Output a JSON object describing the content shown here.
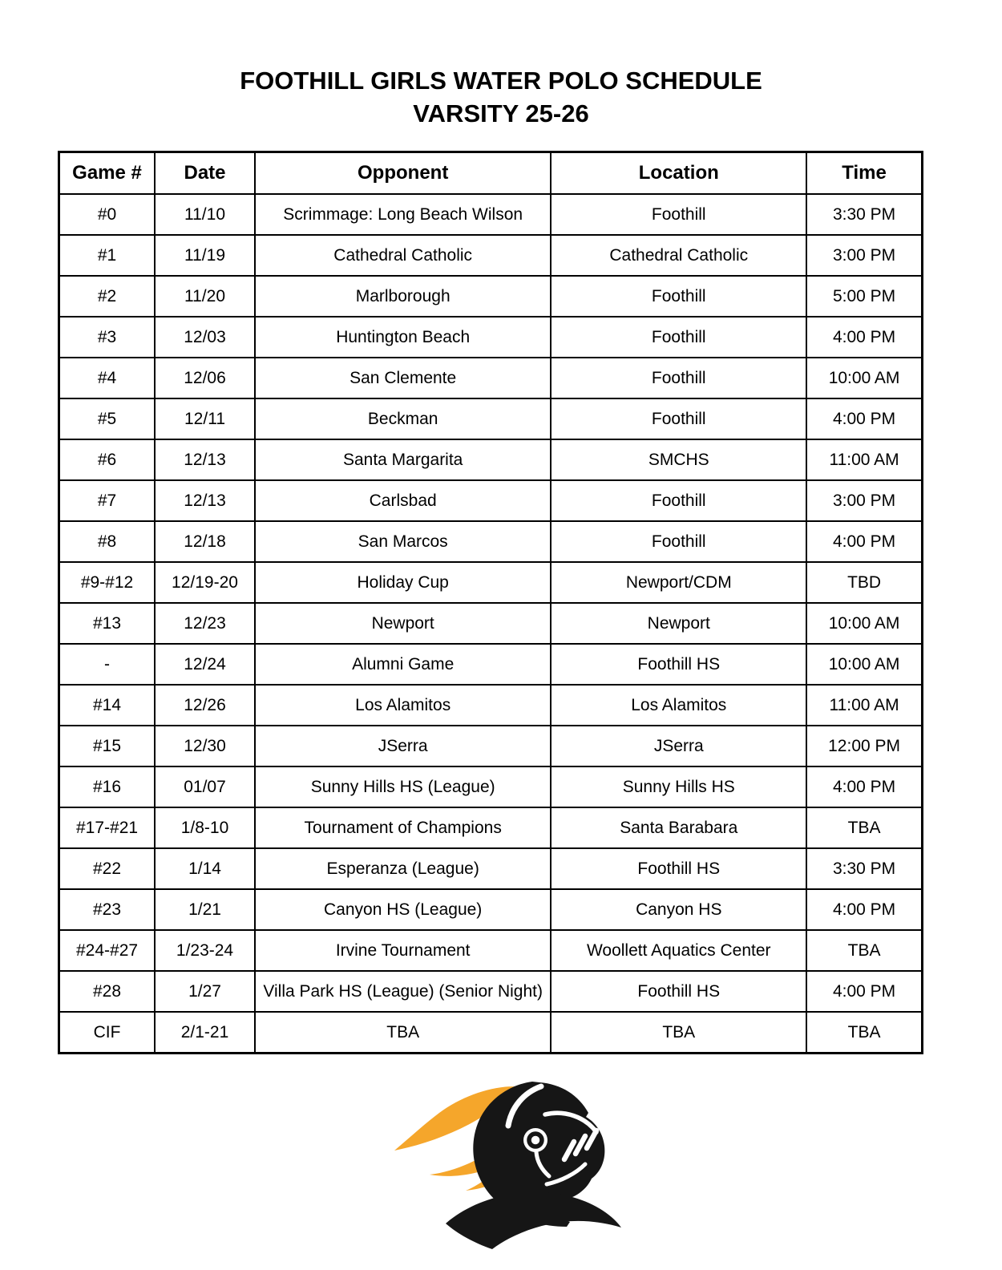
{
  "page": {
    "title_line1": "FOOTHILL GIRLS WATER POLO SCHEDULE",
    "title_line2": "VARSITY 25-26"
  },
  "table": {
    "headers": [
      "Game #",
      "Date",
      "Opponent",
      "Location",
      "Time"
    ],
    "rows": [
      [
        "#0",
        "11/10",
        "Scrimmage: Long Beach Wilson",
        "Foothill",
        "3:30 PM"
      ],
      [
        "#1",
        "11/19",
        "Cathedral Catholic",
        "Cathedral Catholic",
        "3:00 PM"
      ],
      [
        "#2",
        "11/20",
        "Marlborough",
        "Foothill",
        "5:00 PM"
      ],
      [
        "#3",
        "12/03",
        "Huntington Beach",
        "Foothill",
        "4:00 PM"
      ],
      [
        "#4",
        "12/06",
        "San Clemente",
        "Foothill",
        "10:00 AM"
      ],
      [
        "#5",
        "12/11",
        "Beckman",
        "Foothill",
        "4:00 PM"
      ],
      [
        "#6",
        "12/13",
        "Santa Margarita",
        "SMCHS",
        "11:00 AM"
      ],
      [
        "#7",
        "12/13",
        "Carlsbad",
        "Foothill",
        "3:00 PM"
      ],
      [
        "#8",
        "12/18",
        "San Marcos",
        "Foothill",
        "4:00 PM"
      ],
      [
        "#9-#12",
        "12/19-20",
        "Holiday Cup",
        "Newport/CDM",
        "TBD"
      ],
      [
        "#13",
        "12/23",
        "Newport",
        "Newport",
        "10:00 AM"
      ],
      [
        "-",
        "12/24",
        "Alumni Game",
        "Foothill HS",
        "10:00 AM"
      ],
      [
        "#14",
        "12/26",
        "Los Alamitos",
        "Los Alamitos",
        "11:00 AM"
      ],
      [
        "#15",
        "12/30",
        "JSerra",
        "JSerra",
        "12:00 PM"
      ],
      [
        "#16",
        "01/07",
        "Sunny Hills HS (League)",
        "Sunny Hills HS",
        "4:00 PM"
      ],
      [
        "#17-#21",
        "1/8-10",
        "Tournament of Champions",
        "Santa Barabara",
        "TBA"
      ],
      [
        "#22",
        "1/14",
        "Esperanza (League)",
        "Foothill HS",
        "3:30 PM"
      ],
      [
        "#23",
        "1/21",
        "Canyon HS (League)",
        "Canyon HS",
        "4:00 PM"
      ],
      [
        "#24-#27",
        "1/23-24",
        "Irvine Tournament",
        "Woollett Aquatics Center",
        "TBA"
      ],
      [
        "#28",
        "1/27",
        "Villa Park HS (League) (Senior Night)",
        "Foothill HS",
        "4:00 PM"
      ],
      [
        "CIF",
        "2/1-21",
        "TBA",
        "TBA",
        "TBA"
      ]
    ]
  },
  "logo": {
    "description": "Foothill Knights knight-head mascot with flame plume",
    "flame_color": "#F5A62B",
    "knight_color": "#161616"
  }
}
